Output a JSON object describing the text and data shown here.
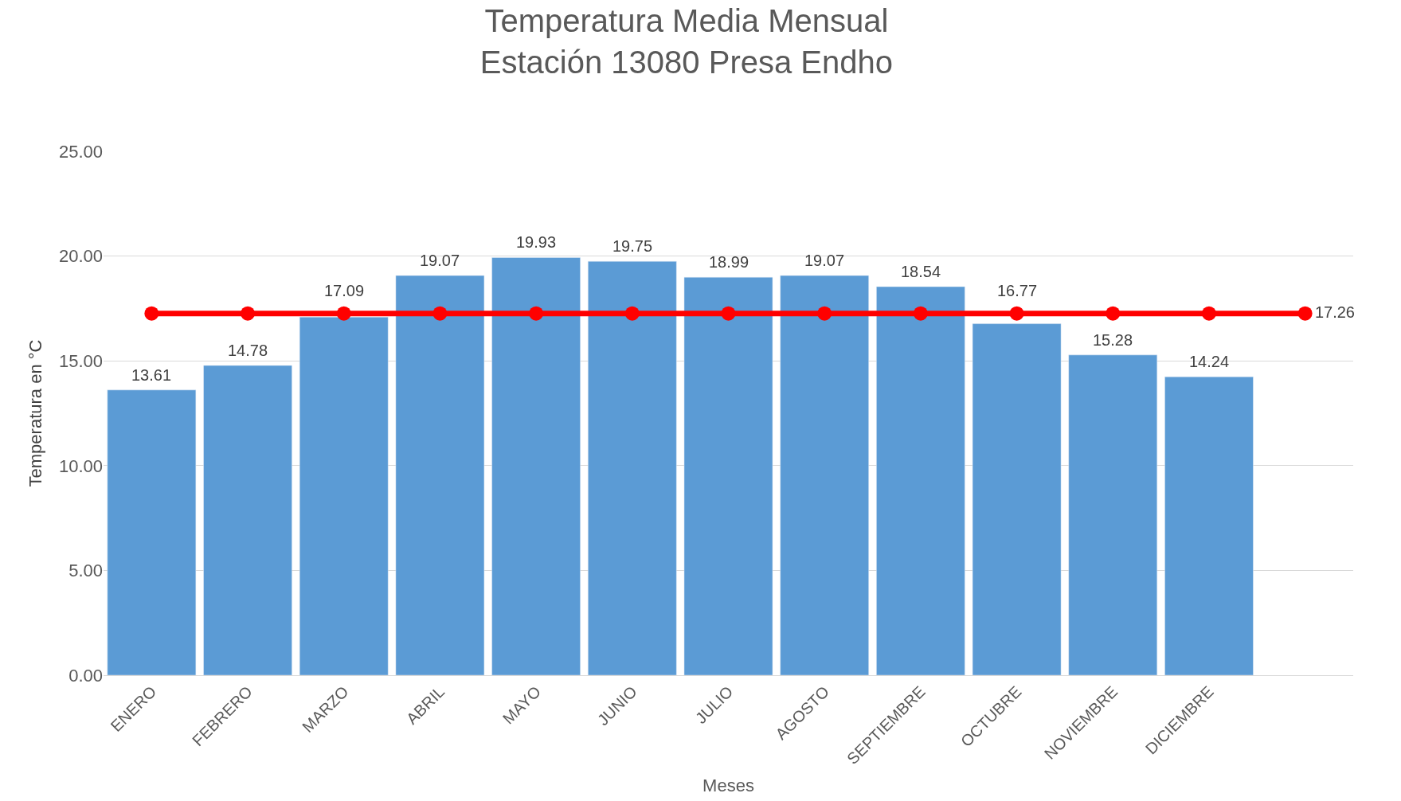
{
  "chart_data": {
    "type": "bar",
    "title": "Temperatura Media Mensual\nEstación 13080 Presa Endho",
    "xlabel": "Meses",
    "ylabel": "Temperatura en °C",
    "categories": [
      "ENERO",
      "FEBRERO",
      "MARZO",
      "ABRIL",
      "MAYO",
      "JUNIO",
      "JULIO",
      "AGOSTO",
      "SEPTIEMBRE",
      "OCTUBRE",
      "NOVIEMBRE",
      "DICIEMBRE",
      null
    ],
    "series": [
      {
        "color": "#5b9bd5",
        "values": [
          13.61,
          14.78,
          17.09,
          19.07,
          19.93,
          19.75,
          18.99,
          19.07,
          18.54,
          16.77,
          15.28,
          14.24,
          null
        ],
        "value_labels": [
          "13.61",
          "14.78",
          "17.09",
          "19.07",
          "19.93",
          "19.75",
          "18.99",
          "19.07",
          "18.54",
          "16.77",
          "15.28",
          "14.24",
          null
        ]
      },
      {
        "type": "line",
        "color": "#ff0000",
        "marker": "circle",
        "line_style": "solid",
        "values": [
          17.26,
          17.26,
          17.26,
          17.26,
          17.26,
          17.26,
          17.26,
          17.26,
          17.26,
          17.26,
          17.26,
          17.26,
          17.26
        ],
        "value_labels": [
          null,
          null,
          null,
          null,
          null,
          null,
          null,
          null,
          null,
          null,
          null,
          null,
          "17.26"
        ]
      }
    ],
    "ylim": [
      0,
      25
    ],
    "yticks": [
      {
        "value": 0,
        "label": "0.00"
      },
      {
        "value": 5,
        "label": "5.00"
      },
      {
        "value": 10,
        "label": "10.00"
      },
      {
        "value": 15,
        "label": "15.00"
      },
      {
        "value": 20,
        "label": "20.00"
      },
      {
        "value": 25,
        "label": "25.00"
      }
    ],
    "grid": "y",
    "legend": false
  }
}
